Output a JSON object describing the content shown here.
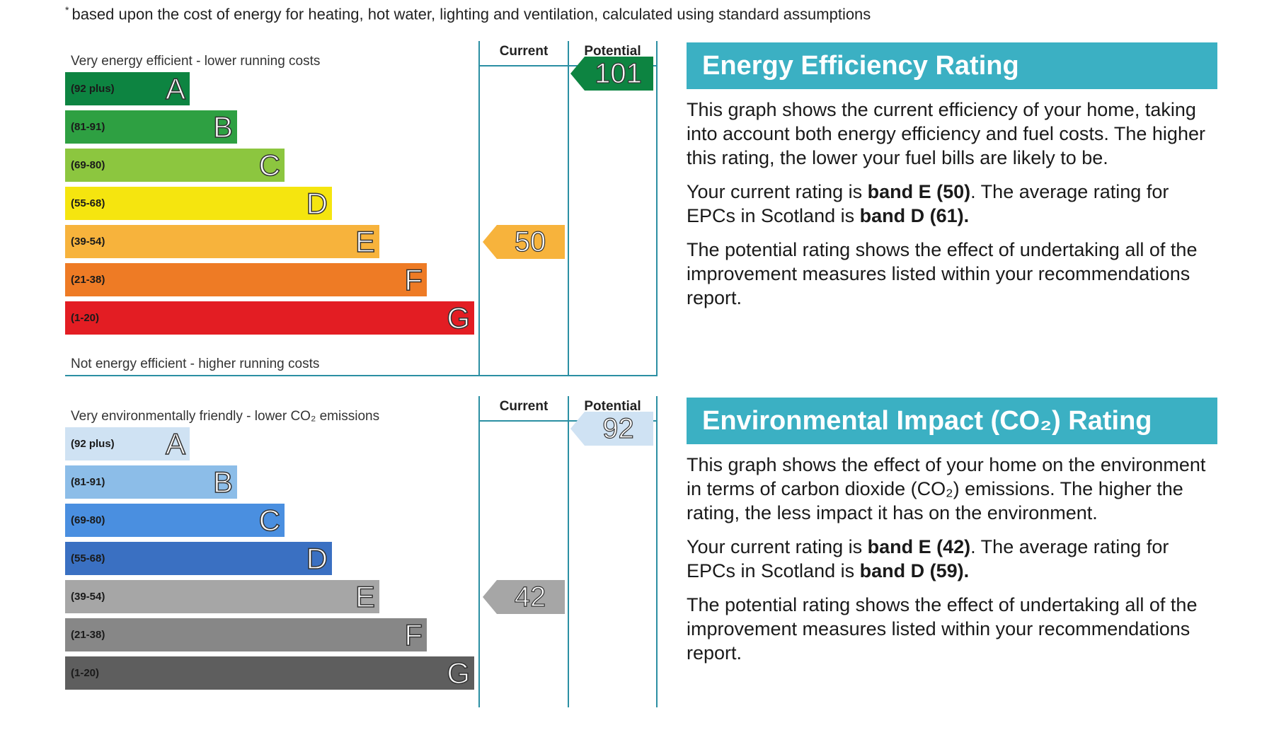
{
  "footnote": {
    "mark": "*",
    "text": "based upon the cost of energy for heating, hot water, lighting and ventilation, calculated using standard assumptions"
  },
  "energy_chart": {
    "top_caption": "Very energy efficient - lower running costs",
    "bottom_caption": "Not energy efficient - higher running costs",
    "col_current": "Current",
    "col_potential": "Potential",
    "bands": [
      {
        "range": "(92 plus)",
        "letter": "A",
        "color": "#0d8441"
      },
      {
        "range": "(81-91)",
        "letter": "B",
        "color": "#2ea042"
      },
      {
        "range": "(69-80)",
        "letter": "C",
        "color": "#8cc63f"
      },
      {
        "range": "(55-68)",
        "letter": "D",
        "color": "#f5e50f"
      },
      {
        "range": "(39-54)",
        "letter": "E",
        "color": "#f7b33c"
      },
      {
        "range": "(21-38)",
        "letter": "F",
        "color": "#ee7b25"
      },
      {
        "range": "(1-20)",
        "letter": "G",
        "color": "#e31d23"
      }
    ],
    "current": {
      "value": "50",
      "band": "E",
      "color": "#f7b33c"
    },
    "potential": {
      "value": "101",
      "band": "A",
      "color": "#0d8441"
    }
  },
  "env_chart": {
    "top_caption": "Very environmentally friendly - lower CO₂ emissions",
    "col_current": "Current",
    "col_potential": "Potential",
    "bands": [
      {
        "range": "(92 plus)",
        "letter": "A",
        "color": "#cfe2f3"
      },
      {
        "range": "(81-91)",
        "letter": "B",
        "color": "#8cbde8"
      },
      {
        "range": "(69-80)",
        "letter": "C",
        "color": "#4a8fe0"
      },
      {
        "range": "(55-68)",
        "letter": "D",
        "color": "#3a70c2"
      },
      {
        "range": "(39-54)",
        "letter": "E",
        "color": "#a6a6a6"
      },
      {
        "range": "(21-38)",
        "letter": "F",
        "color": "#878787"
      },
      {
        "range": "(1-20)",
        "letter": "G",
        "color": "#5e5e5e"
      }
    ],
    "current": {
      "value": "42",
      "band": "E",
      "color": "#a6a6a6"
    },
    "potential": {
      "value": "92",
      "band": "A",
      "color": "#cfe2f3"
    }
  },
  "energy_panel": {
    "title": "Energy Efficiency Rating",
    "para1": "This graph shows the current efficiency of your home, taking into account both energy efficiency and fuel costs. The higher this rating, the lower your fuel bills are likely to be.",
    "para2_prefix": "Your current rating is ",
    "para2_bold1": "band E (50)",
    "para2_mid": ". The average rating for EPCs in Scotland is ",
    "para2_bold2": "band D (61).",
    "para3": "The potential rating shows the effect of undertaking all of the improvement measures listed within your recommendations report."
  },
  "env_panel": {
    "title": "Environmental Impact (CO₂) Rating",
    "para1": "This graph shows the effect of your home on the environment in terms of carbon dioxide (CO₂) emissions. The higher the rating, the less impact it has on the environment.",
    "para2_prefix": "Your current rating is ",
    "para2_bold1": "band E (42)",
    "para2_mid": ". The average rating for EPCs in Scotland is ",
    "para2_bold2": "band D (59).",
    "para3": "The potential rating shows the effect of undertaking all of the improvement measures listed within your recommendations report."
  },
  "colors": {
    "accent": "#3bb0c3",
    "rule": "#2b8fa3"
  }
}
